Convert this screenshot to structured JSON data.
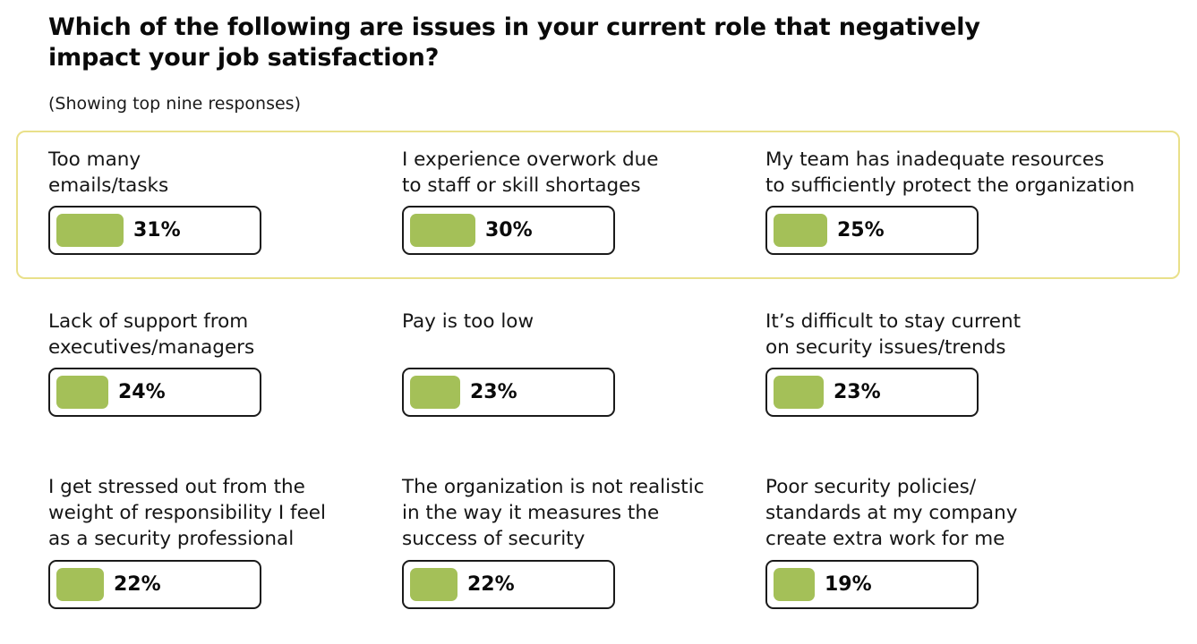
{
  "title": "Which of the following are issues in your current role that negatively impact your job satisfaction?",
  "subtitle": "(Showing top nine responses)",
  "colors": {
    "bar": "#a4c058",
    "highlight_border": "#e9e08a",
    "pill_border": "#1a1a1a"
  },
  "chart_data": {
    "type": "bar",
    "title": "Which of the following are issues in your current role that negatively impact your job satisfaction?",
    "subtitle": "(Showing top nine responses)",
    "unit": "%",
    "ylim": [
      0,
      100
    ],
    "categories": [
      "Too many\nemails/tasks",
      "I experience overwork due\nto staff or skill shortages",
      "My team has inadequate resources\nto sufficiently protect the organization",
      "Lack of support from\nexecutives/managers",
      "Pay is too low",
      "It’s difficult to stay current\non security issues/trends",
      "I get stressed out from the\nweight of responsibility I feel\nas a security professional",
      "The organization is not realistic\nin the way it measures the\nsuccess of security",
      "Poor security policies/\nstandards at my company\ncreate extra work for me"
    ],
    "values": [
      31,
      30,
      25,
      24,
      23,
      23,
      22,
      22,
      19
    ],
    "value_labels": [
      "31%",
      "30%",
      "25%",
      "24%",
      "23%",
      "23%",
      "22%",
      "22%",
      "19%"
    ]
  }
}
